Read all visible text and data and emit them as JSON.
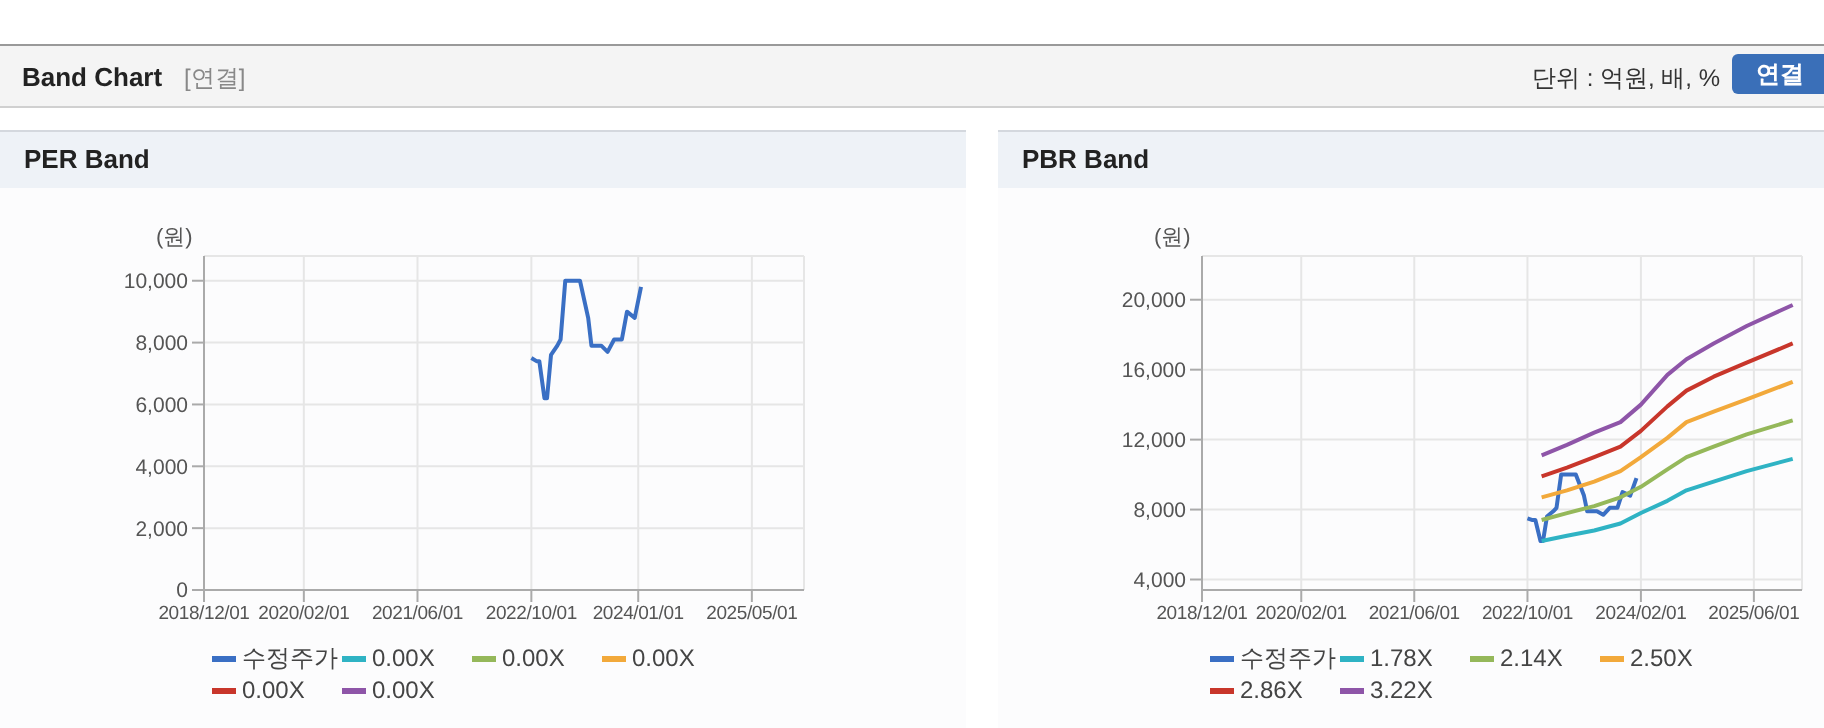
{
  "chart_data": [
    {
      "type": "line",
      "title": "PER Band",
      "ylabel": "(원)",
      "annotations": [
        "Band Chart",
        "[연결]",
        "단위 : 억원, 배, %",
        "연결"
      ],
      "xlim": [
        "2018-12-01",
        "2025-12-10"
      ],
      "xticks": [
        {
          "value": "2018-12-01",
          "label": "2018/12/01"
        },
        {
          "value": "2020-02-01",
          "label": "2020/02/01"
        },
        {
          "value": "2021-06-01",
          "label": "2021/06/01"
        },
        {
          "value": "2022-10-01",
          "label": "2022/10/01"
        },
        {
          "value": "2024-01-01",
          "label": "2024/01/01"
        },
        {
          "value": "2025-05-01",
          "label": "2025/05/01"
        }
      ],
      "ylim": [
        0,
        10800
      ],
      "yticks": [
        0,
        {
          "value": 2000,
          "label": "2,000"
        },
        {
          "value": 4000,
          "label": "4,000"
        },
        {
          "value": 6000,
          "label": "6,000"
        },
        {
          "value": 8000,
          "label": "8,000"
        },
        {
          "value": 10000,
          "label": "10,000"
        }
      ],
      "grid": true,
      "legend": "bottom",
      "marker": "none",
      "line_style": "solid",
      "series": [
        {
          "name": "수정주가",
          "color": "#3a6fc4",
          "x": [
            "2022-10-01",
            "2022-10-23",
            "2022-11-04",
            "2022-11-26",
            "2022-12-07",
            "2022-12-24",
            "2023-01-20",
            "2023-02-03",
            "2023-02-23",
            "2023-04-27",
            "2023-06-01",
            "2023-06-15",
            "2023-07-27",
            "2023-08-23",
            "2023-09-20",
            "2023-10-23",
            "2023-11-14",
            "2023-12-17",
            "2024-01-13"
          ],
          "values": [
            7500,
            7400,
            7400,
            6200,
            6200,
            7600,
            7900,
            8100,
            10000,
            10000,
            8800,
            7900,
            7900,
            7700,
            8100,
            8100,
            9000,
            8800,
            9800
          ]
        },
        {
          "name": "0.00X",
          "color": "#2fb3c4"
        },
        {
          "name": "0.00X",
          "color": "#95b85a"
        },
        {
          "name": "0.00X",
          "color": "#f2a93b"
        },
        {
          "name": "0.00X",
          "color": "#c8362b"
        },
        {
          "name": "0.00X",
          "color": "#8e55a8"
        }
      ]
    },
    {
      "type": "line",
      "title": "PBR Band",
      "ylabel": "(원)",
      "xlim": [
        "2018-12-01",
        "2025-12-25"
      ],
      "xticks": [
        {
          "value": "2018-12-01",
          "label": "2018/12/01"
        },
        {
          "value": "2020-02-01",
          "label": "2020/02/01"
        },
        {
          "value": "2021-06-01",
          "label": "2021/06/01"
        },
        {
          "value": "2022-10-01",
          "label": "2022/10/01"
        },
        {
          "value": "2024-02-01",
          "label": "2024/02/01"
        },
        {
          "value": "2025-06-01",
          "label": "2025/06/01"
        }
      ],
      "ylim": [
        3400,
        22500
      ],
      "yticks": [
        {
          "value": 4000,
          "label": "4,000"
        },
        {
          "value": 8000,
          "label": "8,000"
        },
        {
          "value": 12000,
          "label": "12,000"
        },
        {
          "value": 16000,
          "label": "16,000"
        },
        {
          "value": 20000,
          "label": "20,000"
        }
      ],
      "grid": true,
      "legend": "bottom",
      "marker": "none",
      "line_style": "solid",
      "series": [
        {
          "name": "수정주가",
          "color": "#3a6fc4",
          "x": [
            "2022-10-01",
            "2022-10-23",
            "2022-11-04",
            "2022-11-26",
            "2022-12-07",
            "2022-12-24",
            "2023-01-20",
            "2023-02-03",
            "2023-02-23",
            "2023-04-27",
            "2023-06-01",
            "2023-06-15",
            "2023-07-27",
            "2023-08-23",
            "2023-09-20",
            "2023-10-23",
            "2023-11-14",
            "2023-12-17",
            "2024-01-13"
          ],
          "values": [
            7500,
            7400,
            7400,
            6200,
            6200,
            7600,
            7900,
            8100,
            10000,
            10000,
            8800,
            7900,
            7900,
            7700,
            8100,
            8100,
            9000,
            8800,
            9800
          ]
        },
        {
          "name": "1.78X",
          "color": "#2fb3c4",
          "x": [
            "2022-12-01",
            "2023-03-20",
            "2023-07-15",
            "2023-11-05",
            "2024-02-01",
            "2024-05-25",
            "2024-08-15",
            "2024-12-10",
            "2025-05-01",
            "2025-11-15"
          ],
          "values": [
            6200,
            6500,
            6800,
            7200,
            7800,
            8500,
            9100,
            9600,
            10200,
            10900
          ]
        },
        {
          "name": "2.14X",
          "color": "#95b85a",
          "x": [
            "2022-12-01",
            "2023-03-20",
            "2023-07-15",
            "2023-11-05",
            "2024-02-01",
            "2024-05-25",
            "2024-08-15",
            "2024-12-10",
            "2025-05-01",
            "2025-11-15"
          ],
          "values": [
            7400,
            7800,
            8200,
            8700,
            9300,
            10300,
            11000,
            11600,
            12300,
            13100
          ]
        },
        {
          "name": "2.50X",
          "color": "#f2a93b",
          "x": [
            "2022-12-01",
            "2023-03-20",
            "2023-07-15",
            "2023-11-05",
            "2024-02-01",
            "2024-05-25",
            "2024-08-15",
            "2024-12-10",
            "2025-05-01",
            "2025-11-15"
          ],
          "values": [
            8700,
            9100,
            9600,
            10200,
            11000,
            12100,
            13000,
            13600,
            14300,
            15300
          ]
        },
        {
          "name": "2.86X",
          "color": "#c8362b",
          "x": [
            "2022-12-01",
            "2023-03-20",
            "2023-07-15",
            "2023-11-05",
            "2024-02-01",
            "2024-05-25",
            "2024-08-15",
            "2024-12-10",
            "2025-05-01",
            "2025-11-15"
          ],
          "values": [
            9900,
            10400,
            11000,
            11600,
            12500,
            13900,
            14800,
            15600,
            16400,
            17500
          ]
        },
        {
          "name": "3.22X",
          "color": "#8e55a8",
          "x": [
            "2022-12-01",
            "2023-03-20",
            "2023-07-15",
            "2023-11-05",
            "2024-02-01",
            "2024-05-25",
            "2024-08-15",
            "2024-12-10",
            "2025-05-01",
            "2025-11-15"
          ],
          "values": [
            11100,
            11700,
            12400,
            13000,
            14000,
            15700,
            16600,
            17500,
            18500,
            19700
          ]
        }
      ]
    }
  ]
}
